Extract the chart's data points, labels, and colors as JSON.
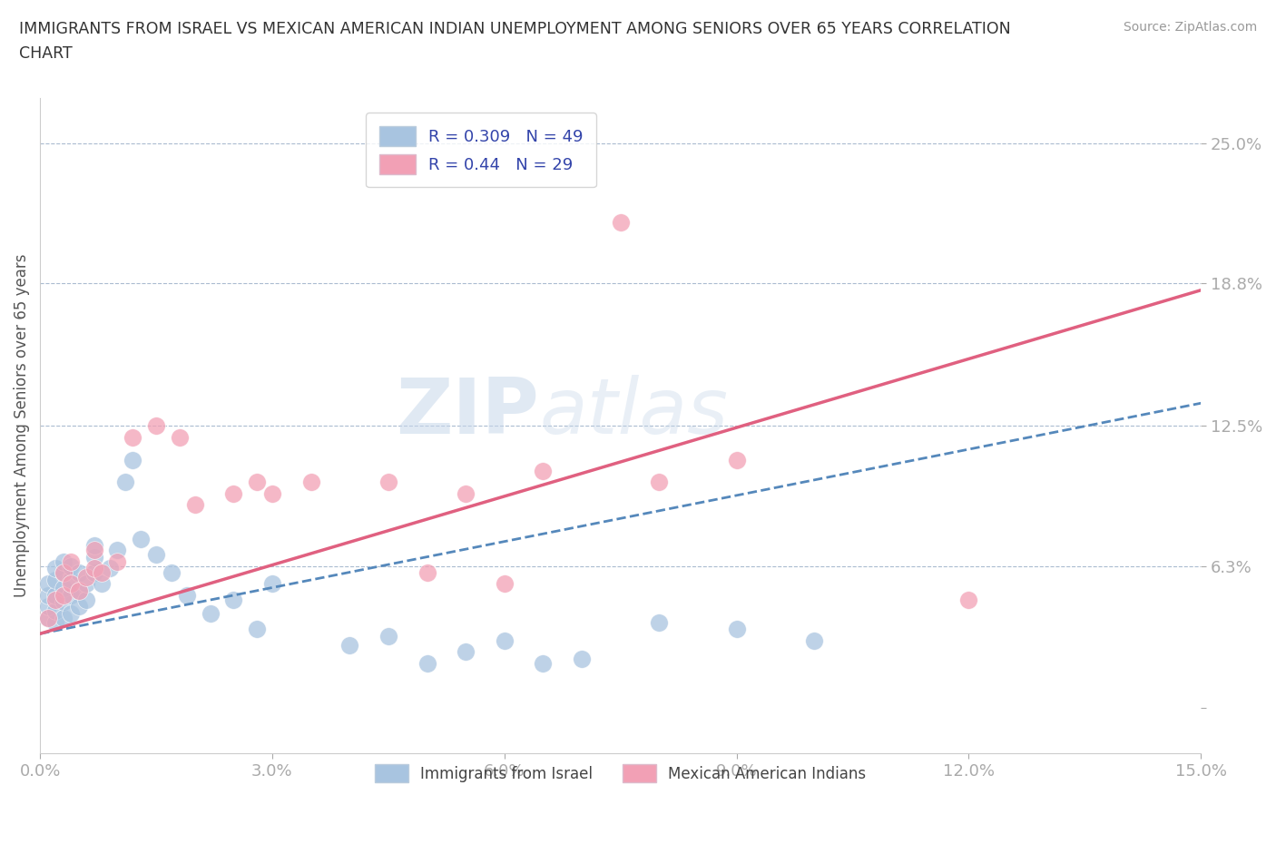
{
  "title": "IMMIGRANTS FROM ISRAEL VS MEXICAN AMERICAN INDIAN UNEMPLOYMENT AMONG SENIORS OVER 65 YEARS CORRELATION\nCHART",
  "source": "Source: ZipAtlas.com",
  "ylabel": "Unemployment Among Seniors over 65 years",
  "xlim": [
    0.0,
    0.15
  ],
  "ylim": [
    -0.02,
    0.27
  ],
  "yticks": [
    0.0,
    0.063,
    0.125,
    0.188,
    0.25
  ],
  "ytick_labels": [
    "",
    "6.3%",
    "12.5%",
    "18.8%",
    "25.0%"
  ],
  "xticks": [
    0.0,
    0.03,
    0.06,
    0.09,
    0.12,
    0.15
  ],
  "xtick_labels": [
    "0.0%",
    "3.0%",
    "6.0%",
    "9.0%",
    "12.0%",
    "15.0%"
  ],
  "grid_yticks": [
    0.063,
    0.125,
    0.188,
    0.25
  ],
  "blue_color": "#a8c4e0",
  "pink_color": "#f2a0b5",
  "blue_line_color": "#5588bb",
  "pink_line_color": "#e06080",
  "blue_R": 0.309,
  "blue_N": 49,
  "pink_R": 0.44,
  "pink_N": 29,
  "watermark_zip": "ZIP",
  "watermark_atlas": "atlas",
  "legend_label_blue": "Immigrants from Israel",
  "legend_label_pink": "Mexican American Indians",
  "blue_scatter_x": [
    0.001,
    0.001,
    0.001,
    0.001,
    0.002,
    0.002,
    0.002,
    0.002,
    0.002,
    0.003,
    0.003,
    0.003,
    0.003,
    0.003,
    0.004,
    0.004,
    0.004,
    0.004,
    0.005,
    0.005,
    0.005,
    0.006,
    0.006,
    0.007,
    0.007,
    0.007,
    0.008,
    0.009,
    0.01,
    0.011,
    0.012,
    0.013,
    0.015,
    0.017,
    0.019,
    0.022,
    0.025,
    0.028,
    0.03,
    0.04,
    0.045,
    0.05,
    0.055,
    0.06,
    0.065,
    0.07,
    0.08,
    0.09,
    0.1
  ],
  "blue_scatter_y": [
    0.04,
    0.045,
    0.05,
    0.055,
    0.038,
    0.043,
    0.05,
    0.057,
    0.062,
    0.04,
    0.047,
    0.053,
    0.06,
    0.065,
    0.042,
    0.05,
    0.057,
    0.063,
    0.045,
    0.052,
    0.06,
    0.048,
    0.055,
    0.06,
    0.067,
    0.072,
    0.055,
    0.062,
    0.07,
    0.1,
    0.11,
    0.075,
    0.068,
    0.06,
    0.05,
    0.042,
    0.048,
    0.035,
    0.055,
    0.028,
    0.032,
    0.02,
    0.025,
    0.03,
    0.02,
    0.022,
    0.038,
    0.035,
    0.03
  ],
  "pink_scatter_x": [
    0.001,
    0.002,
    0.003,
    0.003,
    0.004,
    0.004,
    0.005,
    0.006,
    0.007,
    0.007,
    0.008,
    0.01,
    0.012,
    0.015,
    0.018,
    0.02,
    0.025,
    0.028,
    0.03,
    0.035,
    0.045,
    0.05,
    0.055,
    0.06,
    0.065,
    0.075,
    0.08,
    0.09,
    0.12
  ],
  "pink_scatter_y": [
    0.04,
    0.048,
    0.05,
    0.06,
    0.055,
    0.065,
    0.052,
    0.058,
    0.062,
    0.07,
    0.06,
    0.065,
    0.12,
    0.125,
    0.12,
    0.09,
    0.095,
    0.1,
    0.095,
    0.1,
    0.1,
    0.06,
    0.095,
    0.055,
    0.105,
    0.215,
    0.1,
    0.11,
    0.048
  ],
  "blue_line_x": [
    0.0,
    0.15
  ],
  "blue_line_y": [
    0.033,
    0.135
  ],
  "pink_line_x": [
    0.0,
    0.15
  ],
  "pink_line_y": [
    0.033,
    0.185
  ]
}
